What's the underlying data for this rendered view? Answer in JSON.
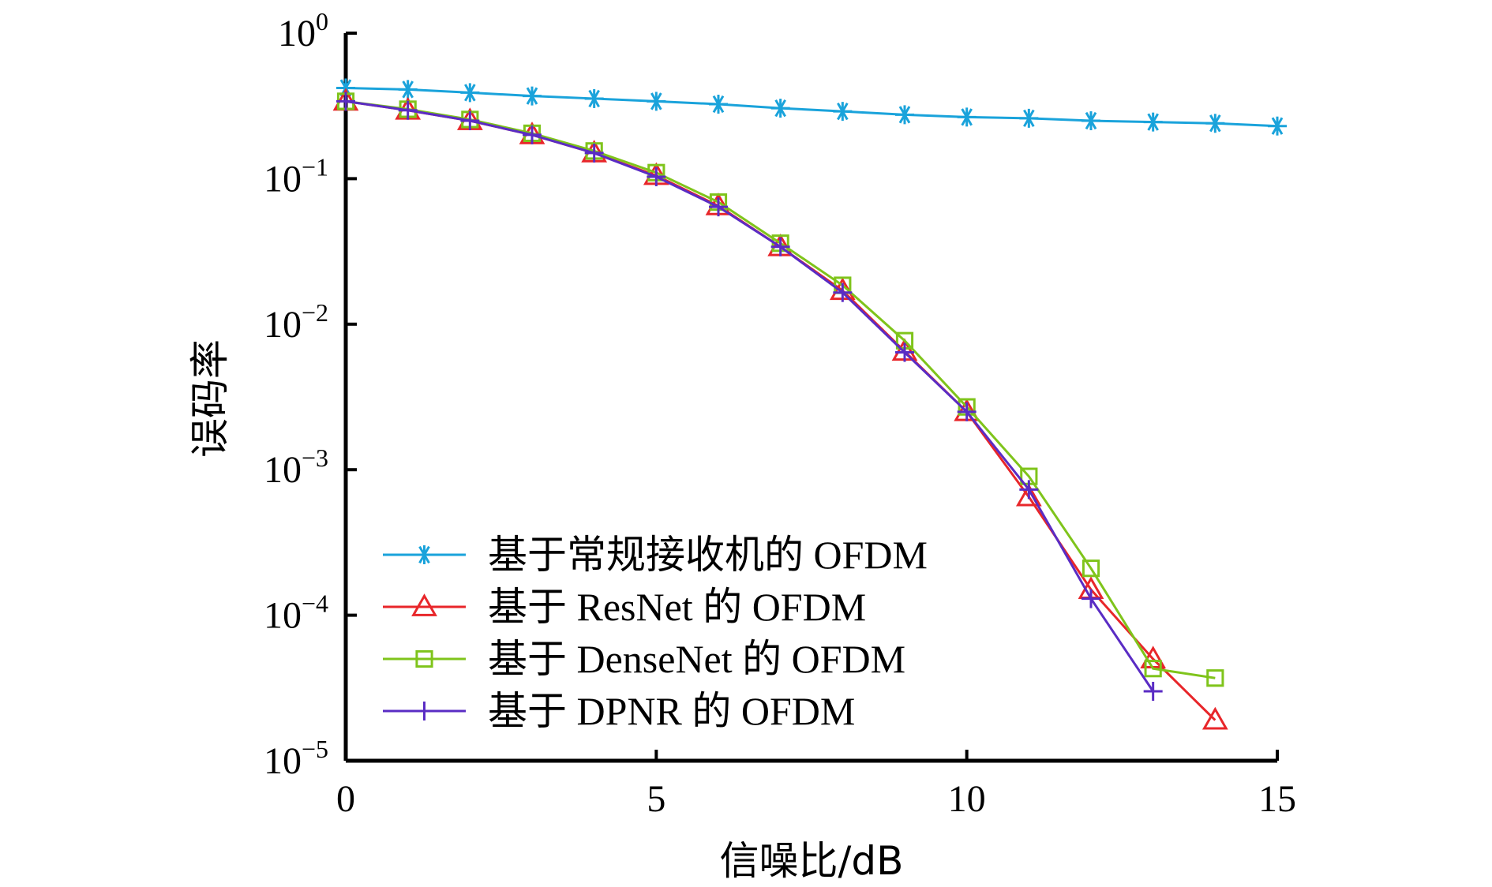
{
  "chart_data": {
    "type": "line",
    "xlabel": "信噪比/dB",
    "ylabel": "误码率",
    "xlim": [
      0,
      15
    ],
    "ylim_exponent": [
      -5,
      0
    ],
    "y_scale": "log",
    "x_ticks": [
      "0",
      "5",
      "10",
      "15"
    ],
    "y_ticks": [
      {
        "base": "10",
        "exp": "0"
      },
      {
        "base": "10",
        "exp": "−1"
      },
      {
        "base": "10",
        "exp": "−2"
      },
      {
        "base": "10",
        "exp": "−3"
      },
      {
        "base": "10",
        "exp": "−4"
      },
      {
        "base": "10",
        "exp": "−5"
      }
    ],
    "grid": false,
    "legend_position": "bottom-left",
    "series": [
      {
        "name": "基于常规接收机的 OFDM",
        "color": "#1aa3db",
        "marker": "asterisk",
        "x": [
          0,
          1,
          2,
          3,
          4,
          5,
          6,
          7,
          8,
          9,
          10,
          11,
          12,
          13,
          14,
          15
        ],
        "y": [
          0.42,
          0.41,
          0.39,
          0.37,
          0.355,
          0.34,
          0.325,
          0.305,
          0.29,
          0.275,
          0.265,
          0.26,
          0.25,
          0.245,
          0.24,
          0.23
        ]
      },
      {
        "name": "基于 ResNet 的 OFDM",
        "color": "#e8262a",
        "marker": "triangle",
        "x": [
          0,
          1,
          2,
          3,
          4,
          5,
          6,
          7,
          8,
          9,
          10,
          11,
          12,
          13,
          14
        ],
        "y": [
          0.34,
          0.295,
          0.25,
          0.2,
          0.15,
          0.105,
          0.065,
          0.034,
          0.017,
          0.0065,
          0.0025,
          0.00065,
          0.00015,
          5e-05,
          1.9e-05
        ]
      },
      {
        "name": "基于 DenseNet 的 OFDM",
        "color": "#7fc41b",
        "marker": "square",
        "x": [
          0,
          1,
          2,
          3,
          4,
          5,
          6,
          7,
          8,
          9,
          10,
          11,
          12,
          13,
          14
        ],
        "y": [
          0.34,
          0.3,
          0.255,
          0.205,
          0.155,
          0.11,
          0.069,
          0.036,
          0.0185,
          0.0077,
          0.0027,
          0.0009,
          0.00021,
          4.3e-05,
          3.7e-05
        ]
      },
      {
        "name": "基于 DPNR 的 OFDM",
        "color": "#5a2cc4",
        "marker": "plus",
        "x": [
          0,
          1,
          2,
          3,
          4,
          5,
          6,
          7,
          8,
          9,
          10,
          11,
          12,
          13
        ],
        "y": [
          0.34,
          0.295,
          0.25,
          0.2,
          0.15,
          0.103,
          0.064,
          0.034,
          0.0165,
          0.0064,
          0.0025,
          0.00073,
          0.00013,
          3e-05
        ]
      }
    ]
  }
}
